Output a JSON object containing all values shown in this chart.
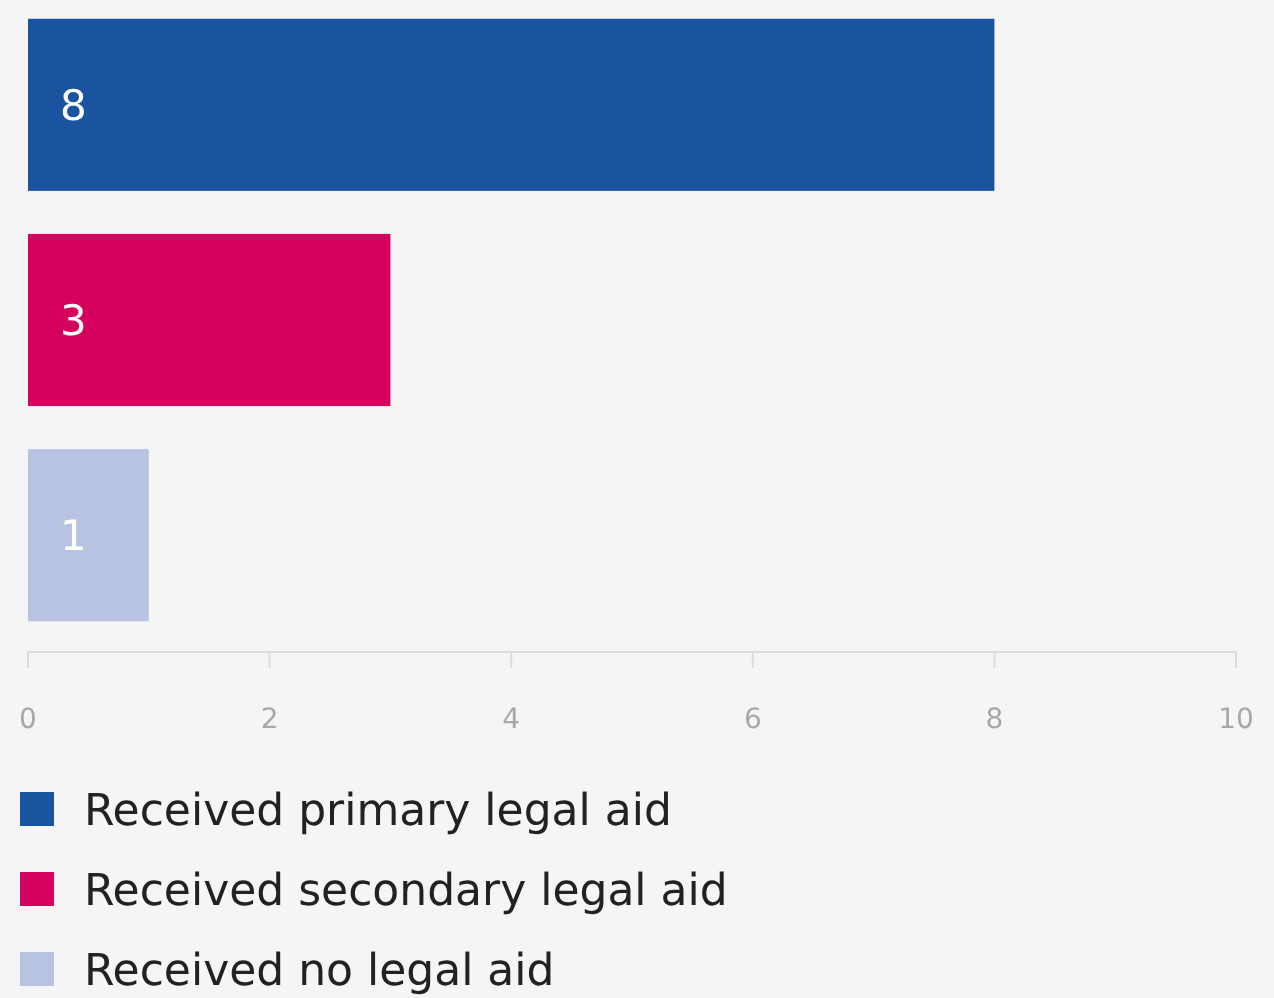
{
  "chart_data": {
    "type": "bar",
    "orientation": "horizontal",
    "categories": [
      null,
      null,
      null
    ],
    "series": [
      {
        "name": "Received primary legal aid",
        "color": "#1a53a0",
        "values": [
          8,
          null,
          null
        ]
      },
      {
        "name": "Received secondary legal aid",
        "color": "#d6005f",
        "values": [
          null,
          3,
          null
        ]
      },
      {
        "name": "Received no legal aid",
        "color": "#b8c2e3",
        "values": [
          null,
          null,
          1
        ]
      }
    ],
    "stacked": true,
    "xlim": [
      0,
      10
    ],
    "xticks": [
      0,
      2,
      4,
      6,
      8,
      10
    ],
    "data_labels": true,
    "legend": "bottom",
    "grid": false
  }
}
